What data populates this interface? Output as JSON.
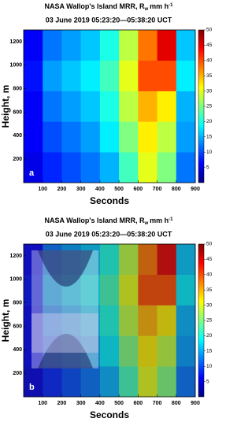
{
  "chart_data": [
    {
      "type": "heatmap",
      "title": "NASA Wallop's Island MRR, R",
      "title_sub": "w",
      "title_unit": "mm h",
      "title_sup": "-1",
      "subtitle": "03 June 2019 05:23:20—05:38:20 UCT",
      "panel_label": "a",
      "x_label": "Seconds",
      "y_label": "Height, m",
      "xlim": [
        0,
        900
      ],
      "xticks": [
        100,
        200,
        300,
        400,
        500,
        600,
        700,
        800,
        900
      ],
      "ylim": [
        0,
        1300
      ],
      "yticks": [
        200,
        400,
        600,
        800,
        1000,
        1200
      ],
      "xbins": [
        0,
        100,
        200,
        300,
        400,
        500,
        600,
        700,
        800,
        900
      ],
      "ybins": [
        0,
        260,
        520,
        780,
        1040,
        1300
      ],
      "z": [
        [
          5,
          8,
          10,
          12,
          15,
          22,
          30,
          25,
          12
        ],
        [
          6,
          10,
          12,
          14,
          18,
          25,
          32,
          28,
          14
        ],
        [
          6,
          12,
          14,
          16,
          20,
          28,
          35,
          32,
          15
        ],
        [
          7,
          14,
          16,
          18,
          22,
          30,
          40,
          40,
          18
        ],
        [
          6,
          12,
          14,
          16,
          20,
          28,
          38,
          45,
          16
        ]
      ],
      "colormap": "jet",
      "zlim": [
        0,
        50
      ],
      "zticks": [
        5,
        10,
        15,
        20,
        25,
        30,
        35,
        40,
        45,
        50
      ]
    },
    {
      "type": "heatmap",
      "title": "NASA Wallop's Island MRR, R",
      "title_sub": "w",
      "title_unit": "mm h",
      "title_sup": "-1",
      "subtitle": "03 June 2019 05:23:20—05:38:20 UCT",
      "panel_label": "b",
      "x_label": "Seconds",
      "y_label": "Height, m",
      "xlim": [
        0,
        900
      ],
      "xticks": [
        100,
        200,
        300,
        400,
        500,
        600,
        700,
        800,
        900
      ],
      "ylim": [
        0,
        1300
      ],
      "yticks": [
        200,
        400,
        600,
        800,
        1000,
        1200
      ],
      "xbins": [
        0,
        100,
        200,
        300,
        400,
        500,
        600,
        700,
        800,
        900
      ],
      "ybins": [
        0,
        260,
        520,
        780,
        1040,
        1300
      ],
      "z": [
        [
          5,
          8,
          10,
          12,
          15,
          22,
          30,
          25,
          12
        ],
        [
          6,
          10,
          12,
          14,
          18,
          25,
          32,
          28,
          14
        ],
        [
          6,
          12,
          14,
          16,
          20,
          28,
          35,
          32,
          15
        ],
        [
          7,
          14,
          16,
          18,
          22,
          30,
          40,
          40,
          18
        ],
        [
          6,
          12,
          14,
          16,
          20,
          28,
          38,
          45,
          16
        ]
      ],
      "colormap": "jet",
      "zlim": [
        0,
        50
      ],
      "zticks": [
        5,
        10,
        15,
        20,
        25,
        30,
        35,
        40,
        45,
        50
      ]
    }
  ]
}
